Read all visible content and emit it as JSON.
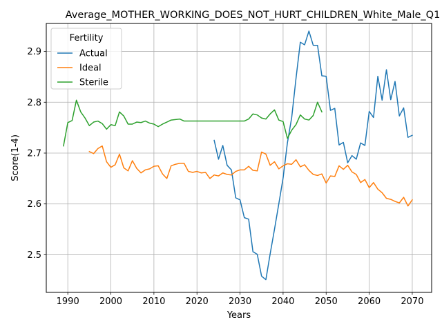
{
  "chart_data": {
    "type": "line",
    "title": "Average_MOTHER_WORKING_DOES_NOT_HURT_CHILDREN_White_Male_Q1",
    "xlabel": "Years",
    "ylabel": "Score(1-4)",
    "xlim": [
      1985,
      2074.5
    ],
    "ylim": [
      2.426,
      2.955
    ],
    "xticks": [
      1990,
      2000,
      2010,
      2020,
      2030,
      2040,
      2050,
      2060,
      2070
    ],
    "yticks": [
      2.5,
      2.6,
      2.7,
      2.8,
      2.9
    ],
    "grid": true,
    "legend_title": "Fertility",
    "legend_position": "top-left",
    "series": [
      {
        "name": "Actual",
        "color": "#1f77b4",
        "x": [
          2024,
          2025,
          2026,
          2027,
          2028,
          2029,
          2030,
          2031,
          2032,
          2033,
          2034,
          2035,
          2036,
          2037,
          2038,
          2039,
          2040,
          2041,
          2042,
          2043,
          2044,
          2045,
          2046,
          2047,
          2048,
          2049,
          2050,
          2051,
          2052,
          2053,
          2054,
          2055,
          2056,
          2057,
          2058,
          2059,
          2060,
          2061,
          2062,
          2063,
          2064,
          2065,
          2066,
          2067,
          2068,
          2069,
          2070
        ],
        "y": [
          2.725,
          2.688,
          2.715,
          2.676,
          2.667,
          2.612,
          2.608,
          2.573,
          2.57,
          2.506,
          2.501,
          2.458,
          2.451,
          2.502,
          2.55,
          2.6,
          2.651,
          2.72,
          2.77,
          2.847,
          2.918,
          2.913,
          2.94,
          2.912,
          2.912,
          2.852,
          2.851,
          2.784,
          2.788,
          2.716,
          2.721,
          2.681,
          2.695,
          2.688,
          2.72,
          2.715,
          2.782,
          2.77,
          2.851,
          2.804,
          2.864,
          2.805,
          2.841,
          2.773,
          2.789,
          2.731,
          2.735
        ]
      },
      {
        "name": "Ideal",
        "color": "#ff7f0e",
        "x": [
          1995,
          1996,
          1997,
          1998,
          1999,
          2000,
          2001,
          2002,
          2003,
          2004,
          2005,
          2006,
          2007,
          2008,
          2009,
          2010,
          2011,
          2012,
          2013,
          2014,
          2015,
          2016,
          2017,
          2018,
          2019,
          2020,
          2021,
          2022,
          2023,
          2024,
          2025,
          2026,
          2027,
          2028,
          2029,
          2030,
          2031,
          2032,
          2033,
          2034,
          2035,
          2036,
          2037,
          2038,
          2039,
          2040,
          2041,
          2042,
          2043,
          2044,
          2045,
          2046,
          2047,
          2048,
          2049,
          2050,
          2051,
          2052,
          2053,
          2054,
          2055,
          2056,
          2057,
          2058,
          2059,
          2060,
          2061,
          2062,
          2063,
          2064,
          2065,
          2066,
          2067,
          2068,
          2069,
          2070
        ],
        "y": [
          2.703,
          2.699,
          2.709,
          2.714,
          2.683,
          2.672,
          2.677,
          2.698,
          2.671,
          2.665,
          2.685,
          2.67,
          2.661,
          2.667,
          2.669,
          2.674,
          2.675,
          2.659,
          2.65,
          2.675,
          2.678,
          2.68,
          2.68,
          2.664,
          2.662,
          2.664,
          2.661,
          2.662,
          2.65,
          2.657,
          2.655,
          2.661,
          2.658,
          2.657,
          2.664,
          2.667,
          2.667,
          2.674,
          2.666,
          2.665,
          2.702,
          2.698,
          2.676,
          2.683,
          2.669,
          2.675,
          2.679,
          2.678,
          2.687,
          2.673,
          2.677,
          2.666,
          2.658,
          2.656,
          2.659,
          2.641,
          2.655,
          2.654,
          2.675,
          2.668,
          2.676,
          2.663,
          2.658,
          2.642,
          2.648,
          2.632,
          2.642,
          2.629,
          2.622,
          2.611,
          2.609,
          2.605,
          2.602,
          2.613,
          2.596,
          2.608
        ]
      },
      {
        "name": "Sterile",
        "color": "#2ca02c",
        "x": [
          1989,
          1990,
          1991,
          1992,
          1993,
          1994,
          1995,
          1996,
          1997,
          1998,
          1999,
          2000,
          2001,
          2002,
          2003,
          2004,
          2005,
          2006,
          2007,
          2008,
          2009,
          2010,
          2011,
          2012,
          2013,
          2014,
          2015,
          2016,
          2017,
          2018,
          2019,
          2020,
          2021,
          2022,
          2023,
          2024,
          2025,
          2026,
          2027,
          2028,
          2029,
          2030,
          2031,
          2032,
          2033,
          2034,
          2035,
          2036,
          2037,
          2038,
          2039,
          2040,
          2041,
          2042,
          2043,
          2044,
          2045,
          2046,
          2047,
          2048,
          2049
        ],
        "y": [
          2.714,
          2.76,
          2.764,
          2.804,
          2.781,
          2.769,
          2.754,
          2.761,
          2.763,
          2.758,
          2.747,
          2.756,
          2.754,
          2.781,
          2.773,
          2.757,
          2.757,
          2.761,
          2.76,
          2.763,
          2.759,
          2.757,
          2.752,
          2.757,
          2.761,
          2.765,
          2.766,
          2.767,
          2.763,
          2.763,
          2.763,
          2.763,
          2.763,
          2.763,
          2.763,
          2.763,
          2.763,
          2.763,
          2.763,
          2.763,
          2.763,
          2.763,
          2.763,
          2.767,
          2.777,
          2.775,
          2.769,
          2.767,
          2.777,
          2.785,
          2.765,
          2.762,
          2.729,
          2.745,
          2.756,
          2.775,
          2.767,
          2.765,
          2.774,
          2.8,
          2.781
        ]
      }
    ]
  }
}
